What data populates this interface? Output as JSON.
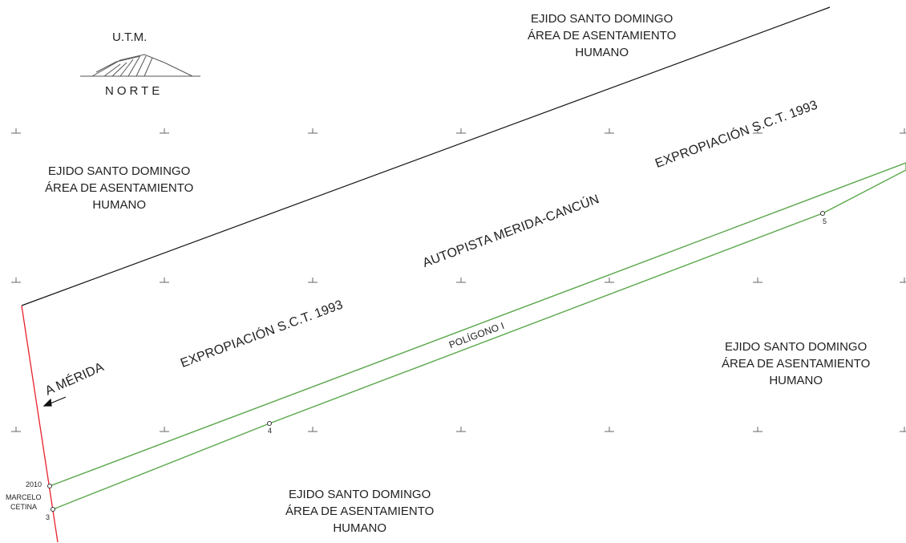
{
  "north_arrow": {
    "utm_label": "U.T.M.",
    "north_label": "NORTE"
  },
  "areas": {
    "top_right": [
      "EJIDO SANTO DOMINGO",
      "ÁREA DE ASENTAMIENTO",
      "HUMANO"
    ],
    "left": [
      "EJIDO SANTO DOMINGO",
      "ÁREA DE ASENTAMIENTO",
      "HUMANO"
    ],
    "right": [
      "EJIDO SANTO DOMINGO",
      "ÁREA DE ASENTAMIENTO",
      "HUMANO"
    ],
    "bottom": [
      "EJIDO SANTO DOMINGO",
      "ÁREA DE ASENTAMIENTO",
      "HUMANO"
    ]
  },
  "road_labels": {
    "expropiacion_upper": "EXPROPIACIÓN S.C.T. 1993",
    "autopista": "AUTOPISTA MERIDA-CANCÚN",
    "expropiacion_lower": "EXPROPIACIÓN S.C.T. 1993",
    "poligono": "POLÍGONO I",
    "a_merida": "A MÉRIDA"
  },
  "points": {
    "p2010": "2010",
    "marcelo": "MARCELO",
    "cetina": "CETINA",
    "p3": "3",
    "p4": "4",
    "p5": "5"
  },
  "colors": {
    "boundary_line": "#111111",
    "green_polygon": "#5aa84a",
    "red_line": "#e8202a",
    "grid_marks": "#666666"
  }
}
